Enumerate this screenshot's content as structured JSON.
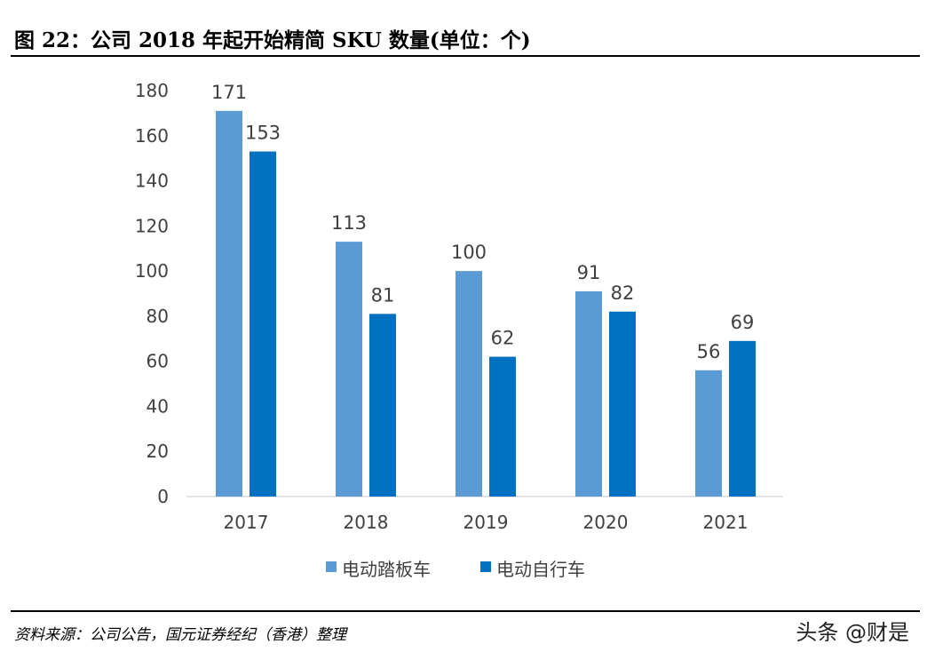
{
  "title": "图 22：公司 2018 年起开始精简 SKU 数量(单位：个)",
  "source": "资料来源：公司公告，国元证券经纪（香港）整理",
  "watermark": "头条 @财是",
  "colors": {
    "series1": "#5B9BD5",
    "series2": "#0070C0",
    "axis": "#D9D9D9",
    "text": "#404040"
  },
  "chart_data": {
    "type": "bar",
    "title": "图 22：公司 2018 年起开始精简 SKU 数量(单位：个)",
    "categories": [
      "2017",
      "2018",
      "2019",
      "2020",
      "2021"
    ],
    "series": [
      {
        "name": "电动踏板车",
        "values": [
          171,
          113,
          100,
          91,
          56
        ]
      },
      {
        "name": "电动自行车",
        "values": [
          153,
          81,
          62,
          82,
          69
        ]
      }
    ],
    "ylim": [
      0,
      180
    ],
    "yticks": [
      0,
      20,
      40,
      60,
      80,
      100,
      120,
      140,
      160,
      180
    ],
    "xlabel": "",
    "ylabel": "",
    "grid": false,
    "legend": "bottom"
  }
}
